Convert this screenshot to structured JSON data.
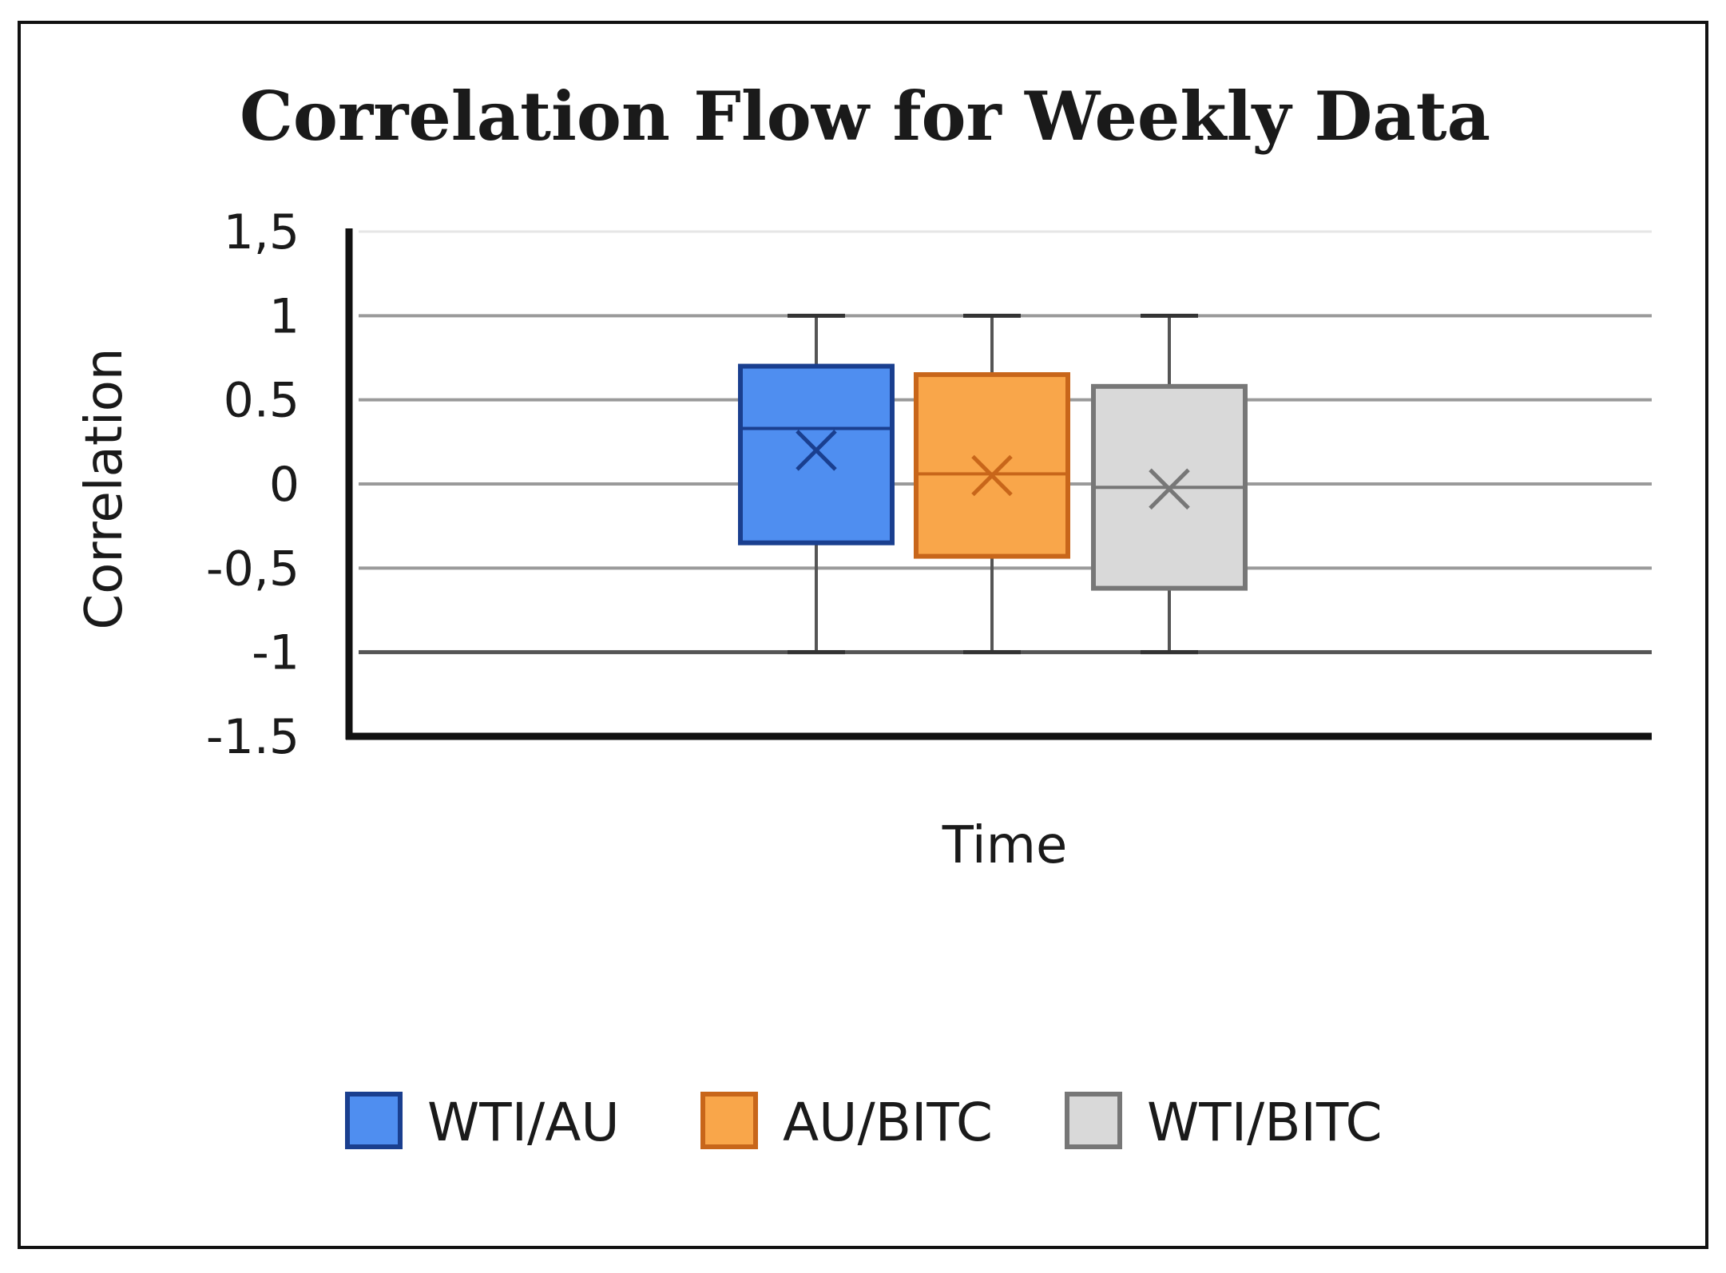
{
  "chart_data": {
    "type": "boxplot",
    "title": "Correlation Flow for Weekly Data",
    "xlabel": "Time",
    "ylabel": "Correlation",
    "ylim": [
      -1.5,
      1.5
    ],
    "yticks": [
      1.5,
      1,
      0.5,
      0,
      -0.5,
      -1,
      -1.5
    ],
    "ytick_labels": [
      "1,5",
      "1",
      "0.5",
      "0",
      "-0,5",
      "-1",
      "-1.5"
    ],
    "grid": true,
    "legend_position": "bottom",
    "series": [
      {
        "name": "WTI/AU",
        "min": -1.0,
        "q1": -0.35,
        "median": 0.33,
        "q3": 0.7,
        "max": 1.0,
        "mean": 0.2,
        "fill": "#4f8ef0",
        "stroke": "#1a3f8f",
        "marker": "#1a3f8f"
      },
      {
        "name": "AU/BITC",
        "min": -1.0,
        "q1": -0.43,
        "median": 0.06,
        "q3": 0.65,
        "max": 1.0,
        "mean": 0.05,
        "fill": "#f9a64a",
        "stroke": "#c8661a",
        "marker": "#c8661a"
      },
      {
        "name": "WTI/BITC",
        "min": -1.0,
        "q1": -0.62,
        "median": -0.02,
        "q3": 0.58,
        "max": 1.0,
        "mean": -0.03,
        "fill": "#d9d9d9",
        "stroke": "#777777",
        "marker": "#777777"
      }
    ]
  }
}
